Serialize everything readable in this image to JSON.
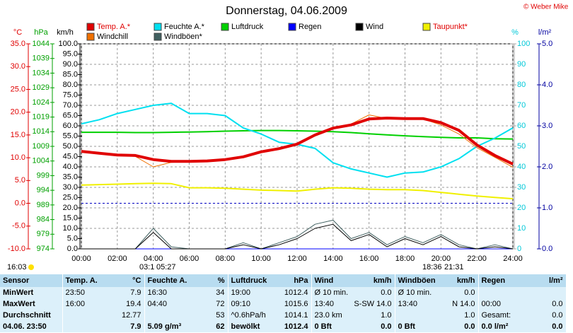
{
  "title": "Donnerstag, 04.06.2009",
  "copyright": "© Weber Mike",
  "chart_data": {
    "type": "line",
    "x": [
      0,
      1,
      2,
      3,
      4,
      5,
      6,
      7,
      8,
      9,
      10,
      11,
      12,
      13,
      14,
      15,
      16,
      17,
      18,
      19,
      20,
      21,
      22,
      23,
      24
    ],
    "xlim": [
      0,
      24
    ],
    "xticks": [
      {
        "value": 0,
        "label": "00:00"
      },
      {
        "value": 2,
        "label": "02:00"
      },
      {
        "value": 4,
        "label": "04:00"
      },
      {
        "value": 6,
        "label": "06:00"
      },
      {
        "value": 8,
        "label": "08:00"
      },
      {
        "value": 10,
        "label": "10:00"
      },
      {
        "value": 12,
        "label": "12:00"
      },
      {
        "value": 14,
        "label": "14:00"
      },
      {
        "value": 16,
        "label": "16:00"
      },
      {
        "value": 18,
        "label": "18:00"
      },
      {
        "value": 20,
        "label": "20:00"
      },
      {
        "value": 22,
        "label": "22:00"
      },
      {
        "value": 24,
        "label": "24:00"
      }
    ],
    "grid": true,
    "axes": [
      {
        "label": "°C",
        "color": "#e00000",
        "ylim": [
          -10,
          35
        ],
        "yticks": [
          {
            "value": 35,
            "label": "35.0"
          },
          {
            "value": 30,
            "label": "30.0"
          },
          {
            "value": 25,
            "label": "25.0"
          },
          {
            "value": 20,
            "label": "20.0"
          },
          {
            "value": 15,
            "label": "15.0"
          },
          {
            "value": 10,
            "label": "10.0"
          },
          {
            "value": 5,
            "label": "5.0"
          },
          {
            "value": 0,
            "label": "0.0"
          },
          {
            "value": -5,
            "label": "-5.0"
          },
          {
            "value": -10,
            "label": "-10.0"
          }
        ]
      },
      {
        "label": "hPa",
        "color": "#00a000",
        "ylim": [
          974,
          1044
        ],
        "yticks": [
          1044,
          1039,
          1034,
          1029,
          1024,
          1019,
          1014,
          1009,
          1004,
          999,
          994,
          989,
          984,
          979,
          974
        ]
      },
      {
        "label": "km/h",
        "color": "#000000",
        "ylim": [
          0,
          100
        ],
        "yticks": [
          {
            "value": 100,
            "label": "100.0"
          },
          {
            "value": 95,
            "label": "95.0"
          },
          {
            "value": 90,
            "label": "90.0"
          },
          {
            "value": 85,
            "label": "85.0"
          },
          {
            "value": 80,
            "label": "80.0"
          },
          {
            "value": 75,
            "label": "75.0"
          },
          {
            "value": 70,
            "label": "70.0"
          },
          {
            "value": 65,
            "label": "65.0"
          },
          {
            "value": 60,
            "label": "60.0"
          },
          {
            "value": 55,
            "label": "55.0"
          },
          {
            "value": 50,
            "label": "50.0"
          },
          {
            "value": 45,
            "label": "45.0"
          },
          {
            "value": 40,
            "label": "40.0"
          },
          {
            "value": 35,
            "label": "35.0"
          },
          {
            "value": 30,
            "label": "30.0"
          },
          {
            "value": 25,
            "label": "25.0"
          },
          {
            "value": 20,
            "label": "20.0"
          },
          {
            "value": 15,
            "label": "15.0"
          },
          {
            "value": 10,
            "label": "10.0"
          },
          {
            "value": 5,
            "label": "5.0"
          },
          {
            "value": 0,
            "label": "0.0"
          }
        ]
      },
      {
        "label": "%",
        "color": "#00c8d8",
        "ylim": [
          0,
          100
        ],
        "yticks": [
          100,
          90,
          80,
          70,
          60,
          50,
          40,
          30,
          20,
          10,
          0
        ]
      },
      {
        "label": "l/m²",
        "color": "#0000a0",
        "ylim": [
          0,
          5
        ],
        "yticks": [
          {
            "value": 5,
            "label": "5.0"
          },
          {
            "value": 4,
            "label": "4.0"
          },
          {
            "value": 3,
            "label": "3.0"
          },
          {
            "value": 2,
            "label": "2.0"
          },
          {
            "value": 1,
            "label": "1.0"
          },
          {
            "value": 0,
            "label": "0.0"
          }
        ]
      }
    ],
    "series": [
      {
        "name": "Temp. A.*",
        "color": "#e00000",
        "axis": 0,
        "width": 4,
        "values": [
          11.4,
          11.0,
          10.6,
          10.5,
          9.6,
          9.2,
          9.2,
          9.3,
          9.6,
          10.2,
          11.3,
          12.0,
          13.0,
          15.0,
          16.5,
          17.2,
          18.5,
          18.7,
          18.6,
          18.6,
          17.7,
          16.0,
          12.8,
          10.5,
          8.6
        ]
      },
      {
        "name": "Feuchte A.*",
        "color": "#00e0f0",
        "axis": 3,
        "width": 2,
        "values": [
          61,
          63,
          66,
          68,
          70,
          71,
          66,
          66,
          65,
          59,
          56,
          52,
          51,
          49,
          42,
          39,
          37,
          35,
          37,
          37.5,
          40,
          44,
          50,
          54,
          59
        ]
      },
      {
        "name": "Luftdruck",
        "color": "#00d000",
        "axis": 1,
        "width": 2,
        "values": [
          1013.8,
          1013.8,
          1013.8,
          1013.7,
          1013.7,
          1013.8,
          1013.9,
          1014.0,
          1014.2,
          1014.3,
          1014.4,
          1014.4,
          1014.3,
          1014.2,
          1014.0,
          1013.7,
          1013.3,
          1012.9,
          1012.6,
          1012.3,
          1012.1,
          1011.9,
          1011.9,
          1011.6,
          1011.5
        ]
      },
      {
        "name": "Regen",
        "color": "#0000ff",
        "axis": 4,
        "width": 1,
        "values": [
          0,
          0,
          0,
          0,
          0,
          0,
          0,
          0,
          0,
          0,
          0,
          0,
          0,
          0,
          0,
          0,
          0,
          0,
          0,
          0,
          0,
          0,
          0,
          0,
          0
        ]
      },
      {
        "name": "Wind",
        "color": "#000000",
        "axis": 2,
        "width": 1,
        "values": [
          0,
          0,
          0,
          0,
          8,
          0,
          0,
          0,
          0,
          2,
          0,
          2,
          5,
          10,
          12,
          4,
          7,
          1,
          5,
          2,
          6,
          1,
          0,
          1,
          0
        ]
      },
      {
        "name": "Taupunkt*",
        "color": "#f0f000",
        "axis": 0,
        "width": 2,
        "values": [
          4.0,
          4.1,
          4.2,
          4.3,
          4.4,
          4.3,
          3.4,
          3.4,
          3.3,
          3.1,
          2.9,
          2.8,
          2.7,
          3.1,
          3.4,
          3.3,
          3.1,
          3.0,
          3.0,
          2.8,
          2.4,
          2.0,
          1.6,
          1.3,
          1.0
        ]
      },
      {
        "name": "Windchill",
        "color": "#f07000",
        "axis": 0,
        "width": 1,
        "values": [
          11.3,
          10.9,
          10.5,
          10.3,
          8.0,
          9.0,
          9.1,
          9.2,
          9.5,
          10.0,
          11.1,
          11.9,
          12.8,
          14.8,
          16.3,
          17.4,
          19.4,
          18.6,
          18.5,
          18.5,
          17.2,
          15.2,
          12.2,
          10.1,
          7.9
        ]
      },
      {
        "name": "Windböen*",
        "color": "#406060",
        "axis": 2,
        "width": 1,
        "values": [
          0,
          0,
          0,
          0,
          10,
          1,
          0,
          0,
          0,
          3,
          0,
          3,
          6,
          12,
          14,
          5,
          8,
          2,
          6,
          3,
          7,
          2,
          0,
          2,
          0
        ]
      }
    ],
    "annotations": [
      "16:03",
      "03:1",
      "05:27",
      "18:36",
      "21:31"
    ]
  },
  "table": {
    "header": [
      {
        "left": "Sensor"
      },
      {
        "left": "Temp. A.",
        "right": "°C"
      },
      {
        "left": "Feuchte A.",
        "right": "%"
      },
      {
        "left": "Luftdruck",
        "right": "hPa"
      },
      {
        "left": "Wind",
        "right": "km/h"
      },
      {
        "left": "Windböen",
        "right": "km/h"
      },
      {
        "left": "Regen",
        "right": "l/m²"
      }
    ],
    "rows": [
      [
        {
          "left": "MinWert"
        },
        {
          "left": "23:50",
          "right": "7.9"
        },
        {
          "left": "16:30",
          "right": "34"
        },
        {
          "left": "19:00",
          "right": "1012.4"
        },
        {
          "left": "Ø 10 min.",
          "right": "0.0"
        },
        {
          "left": "Ø 10 min.",
          "right": "0.0"
        },
        {}
      ],
      [
        {
          "left": "MaxWert"
        },
        {
          "left": "16:00",
          "right": "19.4"
        },
        {
          "left": "04:40",
          "right": "72"
        },
        {
          "left": "09:10",
          "right": "1015.6"
        },
        {
          "left": "13:40",
          "right": "S-SW 14.0"
        },
        {
          "left": "13:40",
          "right": "N 14.0"
        },
        {
          "left": "00:00",
          "right": "0.0"
        }
      ],
      [
        {
          "left": "Durchschnitt"
        },
        {
          "right": "12.77"
        },
        {
          "right": "53"
        },
        {
          "left": "^0.6hPa/h",
          "right": "1014.1"
        },
        {
          "left": "23.0 km",
          "right": "1.0"
        },
        {
          "right": "1.0"
        },
        {
          "left": "Gesamt:",
          "right": "0.0"
        }
      ],
      [
        {
          "left": "04.06. 23:50"
        },
        {
          "right": "7.9"
        },
        {
          "left": "5.09 g/m³",
          "right": "62"
        },
        {
          "left": "bewölkt",
          "right": "1012.4"
        },
        {
          "left": "0 Bft",
          "right": "0.0"
        },
        {
          "left": "0 Bft",
          "right": "0.0"
        },
        {
          "left": "0.0 l/m²",
          "right": "0.0"
        }
      ]
    ]
  }
}
